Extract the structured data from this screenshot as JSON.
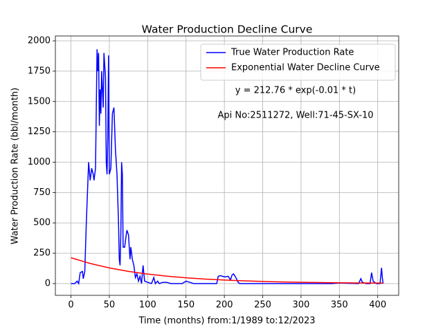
{
  "chart_data": {
    "type": "line",
    "title": "Water Production Decline Curve",
    "x_label": "Time (months) from:1/1989 to:12/2023",
    "y_label": "Water Production Rate (bbl/month)",
    "annotations": [
      "y = 212.76 * exp(-0.01 * t)",
      "Api No:2511272, Well:71-45-SX-10"
    ],
    "xlim": [
      -20.35,
      427.35
    ],
    "ylim": [
      -97,
      2040
    ],
    "xticks": [
      0,
      50,
      100,
      150,
      200,
      250,
      300,
      350,
      400
    ],
    "yticks": [
      0,
      250,
      500,
      750,
      1000,
      1250,
      1500,
      1750,
      2000
    ],
    "grid": true,
    "legend": "upper right",
    "series": [
      {
        "name": "True Water Production Rate",
        "color": "#0000ff",
        "x": [
          0,
          5,
          8,
          10,
          12,
          15,
          16,
          18,
          20,
          23,
          25,
          27,
          29,
          30,
          32,
          34,
          35,
          36,
          37,
          38,
          39,
          40,
          42,
          43,
          45,
          46,
          47,
          48,
          49,
          50,
          52,
          54,
          56,
          58,
          60,
          62,
          63,
          64,
          65,
          66,
          67,
          68,
          70,
          72,
          73,
          75,
          77,
          78,
          80,
          82,
          84,
          86,
          88,
          90,
          92,
          94,
          96,
          100,
          105,
          108,
          110,
          113,
          115,
          120,
          125,
          130,
          145,
          150,
          155,
          160,
          180,
          190,
          192,
          195,
          200,
          205,
          208,
          210,
          212,
          215,
          218,
          220,
          300,
          340,
          350,
          375,
          378,
          380,
          385,
          390,
          392,
          394,
          398,
          400,
          403,
          405,
          406,
          407
        ],
        "values": [
          0,
          0,
          20,
          0,
          90,
          100,
          40,
          100,
          500,
          1000,
          850,
          950,
          900,
          850,
          950,
          1930,
          1750,
          1900,
          1300,
          1600,
          1400,
          1750,
          1450,
          1900,
          1700,
          1000,
          900,
          1200,
          1880,
          900,
          950,
          1400,
          1450,
          1100,
          900,
          500,
          200,
          150,
          400,
          1000,
          900,
          300,
          300,
          400,
          440,
          400,
          200,
          300,
          200,
          150,
          50,
          80,
          20,
          60,
          0,
          150,
          20,
          10,
          0,
          50,
          0,
          20,
          0,
          10,
          10,
          0,
          0,
          20,
          10,
          0,
          0,
          0,
          60,
          65,
          55,
          60,
          30,
          70,
          80,
          50,
          10,
          0,
          0,
          0,
          5,
          0,
          40,
          10,
          0,
          0,
          90,
          20,
          0,
          0,
          0,
          130,
          50,
          0
        ]
      },
      {
        "name": "Exponential Water Decline Curve",
        "color": "#ff0000",
        "x": [
          0,
          25,
          50,
          75,
          100,
          125,
          150,
          175,
          200,
          225,
          250,
          275,
          300,
          325,
          350,
          375,
          400,
          407
        ],
        "values": [
          212.76,
          165.7,
          129.05,
          100.5,
          78.27,
          60.96,
          47.47,
          36.97,
          28.79,
          22.43,
          17.46,
          13.6,
          10.59,
          8.25,
          6.43,
          5.0,
          3.9,
          3.63
        ]
      }
    ]
  }
}
